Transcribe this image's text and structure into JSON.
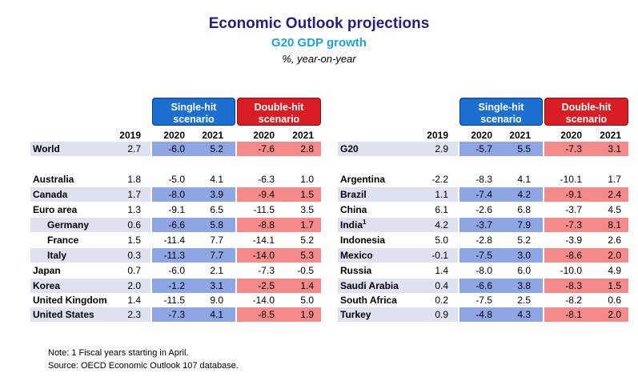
{
  "title": "Economic Outlook projections",
  "subtitle": "G20 GDP growth",
  "unit": "%, year-on-year",
  "single_hit_label": "Single-hit scenario",
  "double_hit_label": "Double-hit scenario",
  "year_headers": [
    "2019",
    "2020",
    "2021",
    "2020",
    "2021"
  ],
  "colors": {
    "title": "#2e1a86",
    "subtitle": "#1fa0e0",
    "single_hit": "#1a6fd1",
    "double_hit": "#d81e24",
    "single_hit_band": "#8ea6e4",
    "double_hit_band": "#f58a8a",
    "label_band": "#dde1f0"
  },
  "notes": {
    "line1": "Note: 1 Fiscal years starting in April.",
    "line2": "Source: OECD Economic Outlook 107 database."
  },
  "chart_data": {
    "type": "table",
    "title": "Economic Outlook projections",
    "subtitle": "G20 GDP growth",
    "columns": [
      "2019",
      "Single-hit 2020",
      "Single-hit 2021",
      "Double-hit 2020",
      "Double-hit 2021"
    ],
    "left": [
      {
        "name": "World",
        "values": [
          "2.7",
          "-6.0",
          "5.2",
          "-7.6",
          "2.8"
        ]
      },
      {
        "name": "Australia",
        "values": [
          "1.8",
          "-5.0",
          "4.1",
          "-6.3",
          "1.0"
        ]
      },
      {
        "name": "Canada",
        "values": [
          "1.7",
          "-8.0",
          "3.9",
          "-9.4",
          "1.5"
        ]
      },
      {
        "name": "Euro area",
        "values": [
          "1.3",
          "-9.1",
          "6.5",
          "-11.5",
          "3.5"
        ]
      },
      {
        "name": "Germany",
        "values": [
          "0.6",
          "-6.6",
          "5.8",
          "-8.8",
          "1.7"
        ]
      },
      {
        "name": "France",
        "values": [
          "1.5",
          "-11.4",
          "7.7",
          "-14.1",
          "5.2"
        ]
      },
      {
        "name": "Italy",
        "values": [
          "0.3",
          "-11.3",
          "7.7",
          "-14.0",
          "5.3"
        ]
      },
      {
        "name": "Japan",
        "values": [
          "0.7",
          "-6.0",
          "2.1",
          "-7.3",
          "-0.5"
        ]
      },
      {
        "name": "Korea",
        "values": [
          "2.0",
          "-1.2",
          "3.1",
          "-2.5",
          "1.4"
        ]
      },
      {
        "name": "United Kingdom",
        "values": [
          "1.4",
          "-11.5",
          "9.0",
          "-14.0",
          "5.0"
        ]
      },
      {
        "name": "United States",
        "values": [
          "2.3",
          "-7.3",
          "4.1",
          "-8.5",
          "1.9"
        ]
      }
    ],
    "right": [
      {
        "name": "G20",
        "values": [
          "2.9",
          "-5.7",
          "5.5",
          "-7.3",
          "3.1"
        ]
      },
      {
        "name": "Argentina",
        "values": [
          "-2.2",
          "-8.3",
          "4.1",
          "-10.1",
          "1.7"
        ]
      },
      {
        "name": "Brazil",
        "values": [
          "1.1",
          "-7.4",
          "4.2",
          "-9.1",
          "2.4"
        ]
      },
      {
        "name": "China",
        "values": [
          "6.1",
          "-2.6",
          "6.8",
          "-3.7",
          "4.5"
        ]
      },
      {
        "name": "India",
        "sup": "1",
        "values": [
          "4.2",
          "-3.7",
          "7.9",
          "-7.3",
          "8.1"
        ]
      },
      {
        "name": "Indonesia",
        "values": [
          "5.0",
          "-2.8",
          "5.2",
          "-3.9",
          "2.6"
        ]
      },
      {
        "name": "Mexico",
        "values": [
          "-0.1",
          "-7.5",
          "3.0",
          "-8.6",
          "2.0"
        ]
      },
      {
        "name": "Russia",
        "values": [
          "1.4",
          "-8.0",
          "6.0",
          "-10.0",
          "4.9"
        ]
      },
      {
        "name": "Saudi Arabia",
        "values": [
          "0.4",
          "-6.6",
          "3.8",
          "-8.3",
          "1.5"
        ]
      },
      {
        "name": "South Africa",
        "values": [
          "0.2",
          "-7.5",
          "2.5",
          "-8.2",
          "0.6"
        ]
      },
      {
        "name": "Turkey",
        "values": [
          "0.9",
          "-4.8",
          "4.3",
          "-8.1",
          "2.0"
        ]
      }
    ]
  }
}
